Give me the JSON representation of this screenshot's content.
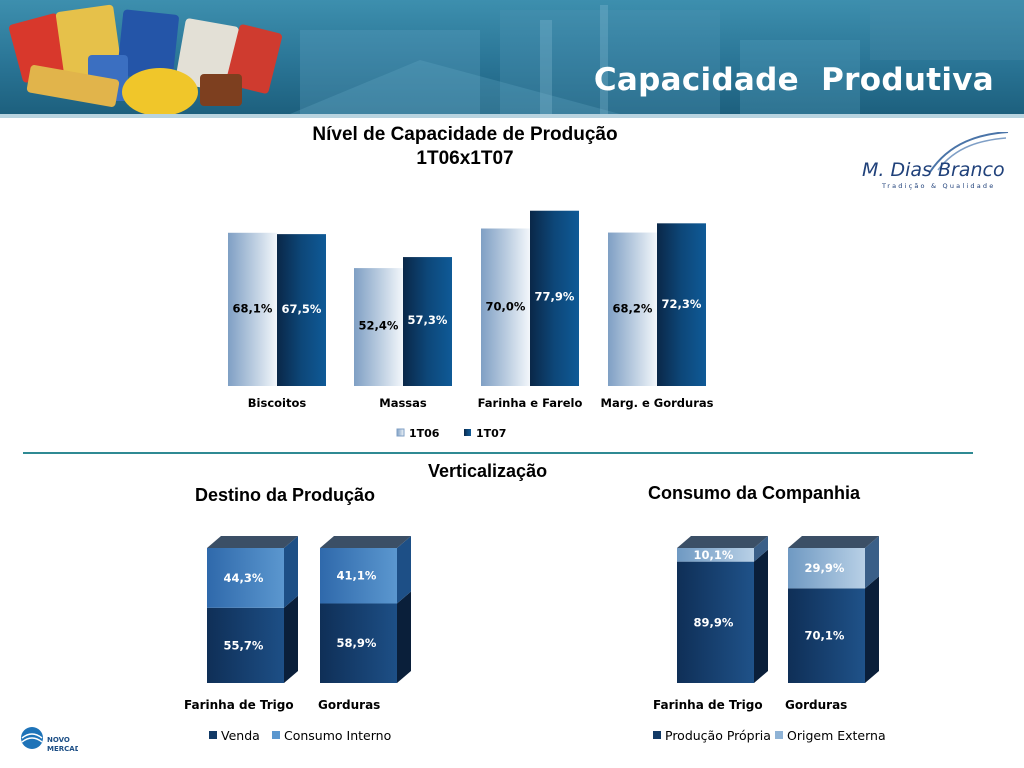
{
  "header": {
    "title": "Capacidade  Produtiva"
  },
  "logo": {
    "brand": "M. Dias Branco",
    "tagline": "Tradição & Qualidade"
  },
  "footer_logo": {
    "line1": "NOVO",
    "line2": "MERCADO"
  },
  "colors": {
    "banner": "#2a7596",
    "series_1t06": "#a9bfd6",
    "series_1t07": "#0d4f86",
    "venda": "#123a66",
    "consumo": "#3f7fc0",
    "origem": "#c7dcea",
    "divider": "#2f8a93"
  },
  "chart_data": [
    {
      "type": "bar",
      "title": "Nível de Capacidade de Produção",
      "subtitle": "1T06x1T07",
      "categories": [
        "Biscoitos",
        "Massas",
        "Farinha e Farelo",
        "Marg. e Gorduras"
      ],
      "series": [
        {
          "name": "1T06",
          "values": [
            68.1,
            52.4,
            70.0,
            68.2
          ],
          "labels": [
            "68,1%",
            "52,4%",
            "70,0%",
            "68,2%"
          ]
        },
        {
          "name": "1T07",
          "values": [
            67.5,
            57.3,
            77.9,
            72.3
          ],
          "labels": [
            "67,5%",
            "57,3%",
            "77,9%",
            "72,3%"
          ]
        }
      ],
      "legend": "bottom",
      "grid": false
    },
    {
      "type": "bar",
      "stacked": true,
      "title": "Destino da Produção",
      "categories": [
        "Farinha de Trigo",
        "Gorduras"
      ],
      "series": [
        {
          "name": "Venda",
          "values": [
            55.7,
            58.9
          ],
          "labels": [
            "55,7%",
            "58,9%"
          ]
        },
        {
          "name": "Consumo Interno",
          "values": [
            44.3,
            41.1
          ],
          "labels": [
            "44,3%",
            "41,1%"
          ]
        }
      ],
      "legend": "bottom"
    },
    {
      "type": "bar",
      "stacked": true,
      "title": "Consumo da Companhia",
      "categories": [
        "Farinha de Trigo",
        "Gorduras"
      ],
      "series": [
        {
          "name": "Produção Própria",
          "values": [
            89.9,
            70.1
          ],
          "labels": [
            "89,9%",
            "70,1%"
          ]
        },
        {
          "name": "Origem Externa",
          "values": [
            10.1,
            29.9
          ],
          "labels": [
            "10,1%",
            "29,9%"
          ]
        }
      ],
      "legend": "bottom"
    }
  ],
  "verticalizacao": {
    "title": "Verticalização"
  }
}
